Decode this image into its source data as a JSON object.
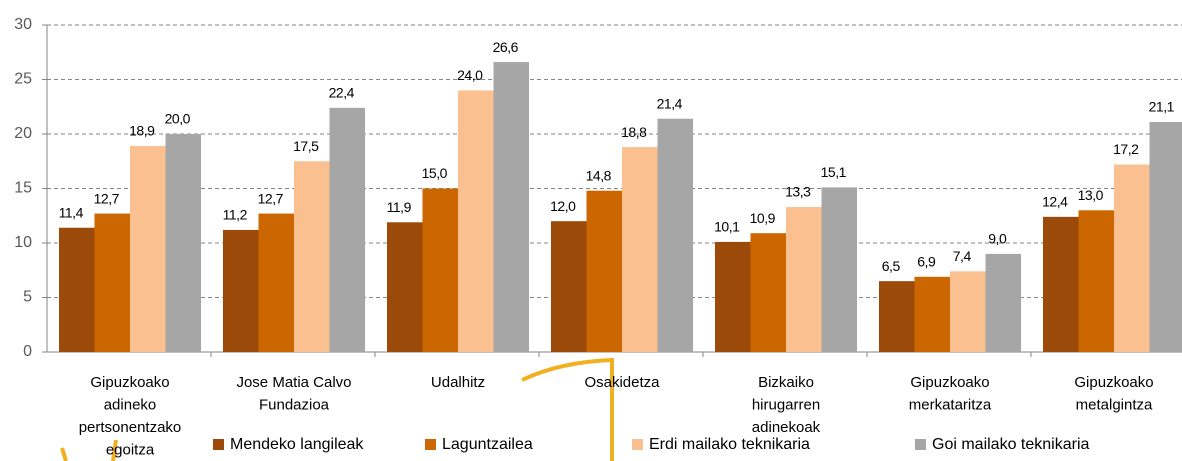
{
  "chart_data": {
    "type": "bar",
    "categories": [
      [
        "Gipuzkoako",
        "adineko",
        "pertsonentzako",
        "egoitza"
      ],
      [
        "Jose Matia Calvo",
        "Fundazioa"
      ],
      [
        "Udalhitz"
      ],
      [
        "Osakidetza"
      ],
      [
        "Bizkaiko",
        "hirugarren",
        "adinekoak"
      ],
      [
        "Gipuzkoako",
        "merkataritza"
      ],
      [
        "Gipuzkoako",
        "metalgintza"
      ]
    ],
    "series": [
      {
        "name": "Mendeko langileak",
        "color": "#9c4a0a",
        "values": [
          11.4,
          11.2,
          11.9,
          12.0,
          10.1,
          6.5,
          12.4
        ],
        "value_labels": [
          "11,4",
          "11,2",
          "11,9",
          "12,0",
          "10,1",
          "6,5",
          "12,4"
        ]
      },
      {
        "name": "Laguntzailea",
        "color": "#cc6600",
        "values": [
          12.7,
          12.7,
          15.0,
          14.8,
          10.9,
          6.9,
          13.0
        ],
        "value_labels": [
          "12,7",
          "12,7",
          "15,0",
          "14,8",
          "10,9",
          "6,9",
          "13,0"
        ]
      },
      {
        "name": "Erdi mailako teknikaria",
        "color": "#fac090",
        "values": [
          18.9,
          17.5,
          24.0,
          18.8,
          13.3,
          7.4,
          17.2
        ],
        "value_labels": [
          "18,9",
          "17,5",
          "24,0",
          "18,8",
          "13,3",
          "7,4",
          "17,2"
        ]
      },
      {
        "name": "Goi mailako teknikaria",
        "color": "#a6a6a6",
        "values": [
          20.0,
          22.4,
          26.6,
          21.4,
          15.1,
          9.0,
          21.1
        ],
        "value_labels": [
          "20,0",
          "22,4",
          "26,6",
          "21,4",
          "15,1",
          "9,0",
          "21,1"
        ]
      }
    ],
    "ylim": [
      0,
      30
    ],
    "yticks": [
      0,
      5,
      10,
      15,
      20,
      25,
      30
    ],
    "grid": true,
    "legend": "bottom"
  }
}
